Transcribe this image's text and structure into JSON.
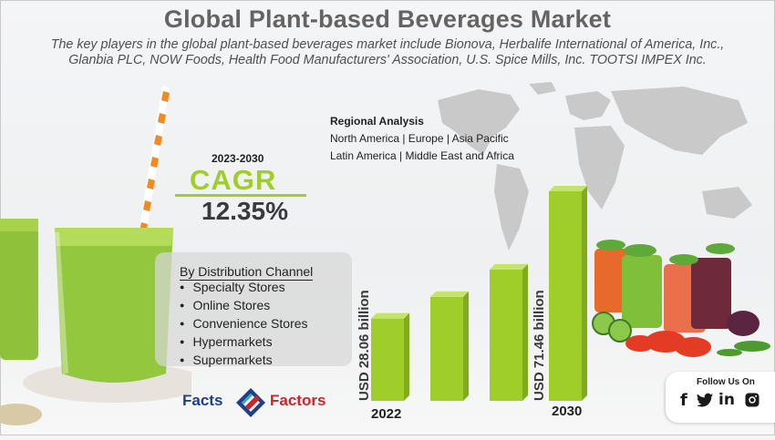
{
  "header": {
    "title": "Global Plant-based Beverages Market",
    "subtitle": "The key players in the global plant-based beverages market include Bionova, Herbalife International of America, Inc., Glanbia PLC, NOW Foods, Health Food Manufacturers' Association, U.S. Spice Mills, Inc. TOOTSI IMPEX Inc."
  },
  "regional": {
    "title": "Regional Analysis",
    "line1": "North America | Europe | Asia Pacific",
    "line2": "Latin America | Middle East and Africa"
  },
  "cagr": {
    "years": "2023-2030",
    "label": "CAGR",
    "value": "12.35%"
  },
  "distribution": {
    "title": "By Distribution Channel",
    "items": [
      "Specialty Stores",
      "Online Stores",
      "Convenience Stores",
      "Hypermarkets",
      "Supermarkets"
    ]
  },
  "chart_data": {
    "type": "bar",
    "categories": [
      "2022",
      "",
      "",
      "",
      "2030"
    ],
    "values": [
      28.06,
      null,
      null,
      null,
      71.46
    ],
    "bar_annotations": [
      "USD 28.06 billion",
      "USD 71.46 billion"
    ],
    "x_labels": [
      "2022",
      "2030"
    ],
    "color": "#9fce2a"
  },
  "logo": {
    "part1": "Facts",
    "part2": "Factors"
  },
  "follow": {
    "title": "Follow Us On",
    "icons": [
      "facebook-icon",
      "twitter-icon",
      "linkedin-icon",
      "instagram-icon"
    ]
  },
  "colors": {
    "accent": "#9fce2a",
    "title": "#646464",
    "brand_blue": "#1d3f8c",
    "brand_red": "#c9262b"
  }
}
